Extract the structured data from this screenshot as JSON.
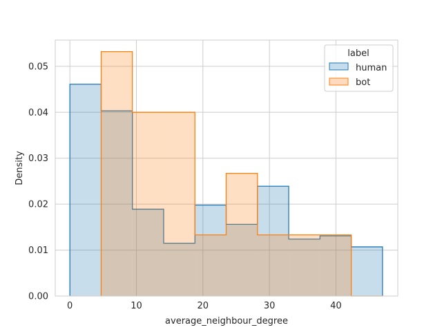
{
  "chart_data": {
    "type": "histogram",
    "xlabel": "average_neighbour_degree",
    "ylabel": "Density",
    "xlim": [
      -2.2,
      49.3
    ],
    "ylim": [
      0,
      0.0557
    ],
    "xticks": [
      0,
      10,
      20,
      30,
      40
    ],
    "yticks": [
      0.0,
      0.01,
      0.02,
      0.03,
      0.04,
      0.05
    ],
    "ytick_labels": [
      "0.00",
      "0.01",
      "0.02",
      "0.03",
      "0.04",
      "0.05"
    ],
    "grid": true,
    "bin_edges": [
      0,
      4.7,
      9.4,
      14.1,
      18.8,
      23.5,
      28.2,
      32.9,
      37.6,
      42.3,
      47.0
    ],
    "series": [
      {
        "name": "human",
        "color": "#1f77b4",
        "fill": "#c5dcec",
        "values": [
          0.0461,
          0.0403,
          0.0189,
          0.0115,
          0.0198,
          0.0156,
          0.0239,
          0.0124,
          0.0131,
          0.0107
        ]
      },
      {
        "name": "bot",
        "color": "#ff7f0e",
        "fill": "#ffdabe",
        "values": [
          0,
          0.0532,
          0.04,
          0.04,
          0.0133,
          0.0267,
          0.0133,
          0.0133,
          0.0133,
          0
        ]
      }
    ],
    "legend": {
      "title": "label",
      "placement": "upper-right",
      "entries": [
        "human",
        "bot"
      ]
    }
  }
}
